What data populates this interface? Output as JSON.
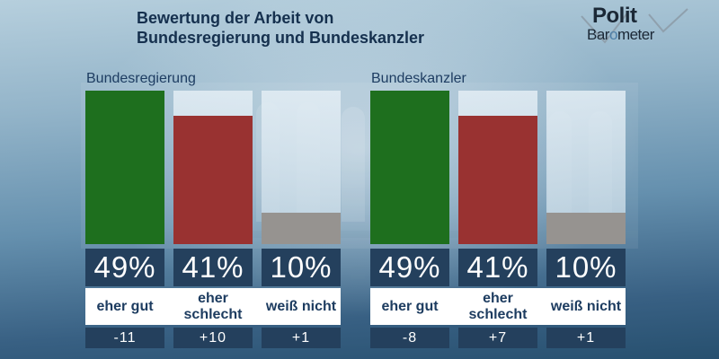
{
  "title": {
    "line1": "Bewertung der Arbeit von",
    "line2": "Bundesregierung und Bundeskanzler"
  },
  "logo": {
    "top": "Polit",
    "bottom_pre": "Bar",
    "bottom_o": "o",
    "bottom_post": "meter"
  },
  "colors": {
    "positive_green": "#1e6f1e",
    "negative_red": "#993231",
    "neutral_gray": "#969390",
    "box_navy": "#24405d",
    "text_navy": "#15304e",
    "band_white": "#ffffff"
  },
  "charts": [
    {
      "label": "Bundesregierung",
      "bars": [
        {
          "category": "eher gut",
          "value": 49,
          "display": "49%",
          "change": "-11",
          "color": "#1e6f1e"
        },
        {
          "category": "eher schlecht",
          "value": 41,
          "display": "41%",
          "change": "+10",
          "color": "#993231"
        },
        {
          "category": "weiß nicht",
          "value": 10,
          "display": "10%",
          "change": "+1",
          "color": "#969390"
        }
      ]
    },
    {
      "label": "Bundeskanzler",
      "bars": [
        {
          "category": "eher gut",
          "value": 49,
          "display": "49%",
          "change": "-8",
          "color": "#1e6f1e"
        },
        {
          "category": "eher schlecht",
          "value": 41,
          "display": "41%",
          "change": "+7",
          "color": "#993231"
        },
        {
          "category": "weiß nicht",
          "value": 10,
          "display": "10%",
          "change": "+1",
          "color": "#969390"
        }
      ]
    }
  ],
  "chart_data": [
    {
      "type": "bar",
      "title": "Bundesregierung",
      "categories": [
        "eher gut",
        "eher schlecht",
        "weiß nicht"
      ],
      "values": [
        49,
        41,
        10
      ],
      "changes": [
        -11,
        10,
        1
      ],
      "unit": "%",
      "ylim": [
        0,
        49
      ],
      "bar_colors": [
        "#1e6f1e",
        "#993231",
        "#969390"
      ],
      "grid": false,
      "legend": "none"
    },
    {
      "type": "bar",
      "title": "Bundeskanzler",
      "categories": [
        "eher gut",
        "eher schlecht",
        "weiß nicht"
      ],
      "values": [
        49,
        41,
        10
      ],
      "changes": [
        -8,
        7,
        1
      ],
      "unit": "%",
      "ylim": [
        0,
        49
      ],
      "bar_colors": [
        "#1e6f1e",
        "#993231",
        "#969390"
      ],
      "grid": false,
      "legend": "none"
    }
  ]
}
